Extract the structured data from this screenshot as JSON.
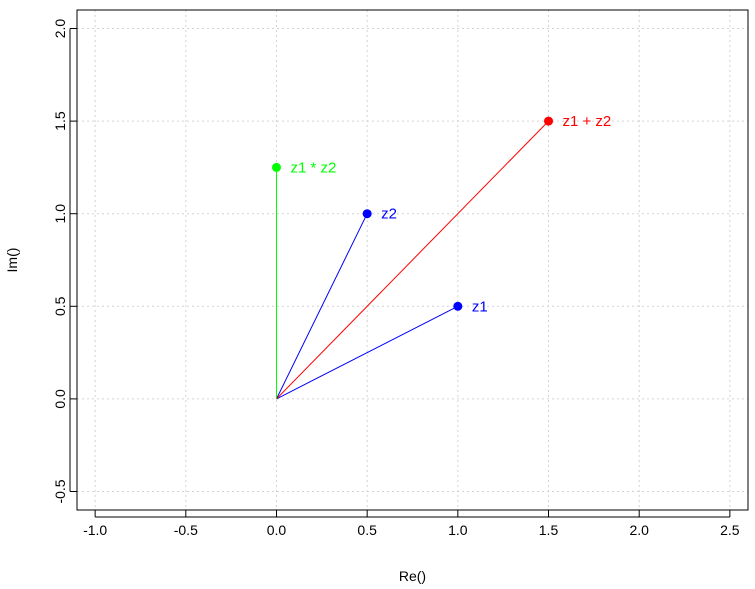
{
  "chart_data": {
    "type": "scatter",
    "xlabel": "Re()",
    "ylabel": "Im()",
    "xlim": [
      -1.1,
      2.6
    ],
    "ylim": [
      -0.6,
      2.1
    ],
    "xticks": [
      "-1.0",
      "-0.5",
      "0.0",
      "0.5",
      "1.0",
      "1.5",
      "2.0",
      "2.5"
    ],
    "xtick_values": [
      -1.0,
      -0.5,
      0.0,
      0.5,
      1.0,
      1.5,
      2.0,
      2.5
    ],
    "yticks": [
      "-0.5",
      "0.0",
      "0.5",
      "1.0",
      "1.5",
      "2.0"
    ],
    "ytick_values": [
      -0.5,
      0.0,
      0.5,
      1.0,
      1.5,
      2.0
    ],
    "grid": true,
    "points": [
      {
        "label": "z1",
        "x": 1.0,
        "y": 0.5,
        "color": "#0000ff"
      },
      {
        "label": "z2",
        "x": 0.5,
        "y": 1.0,
        "color": "#0000ff"
      },
      {
        "label": "z1 + z2",
        "x": 1.5,
        "y": 1.5,
        "color": "#ff0000"
      },
      {
        "label": "z1 * z2",
        "x": 0.0,
        "y": 1.25,
        "color": "#00ff00"
      }
    ],
    "segments_from_origin": true
  }
}
